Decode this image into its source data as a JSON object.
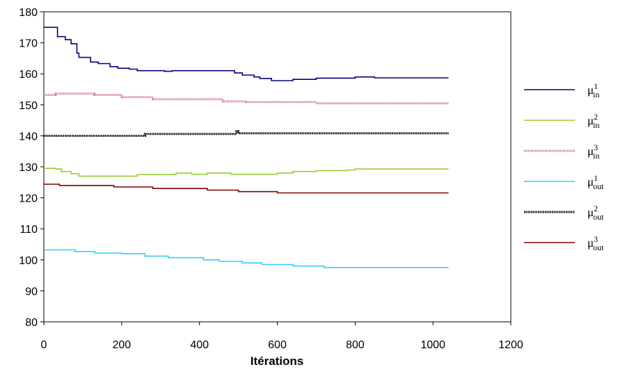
{
  "chart_data": {
    "type": "line",
    "title": "",
    "xlabel": "Itérations",
    "ylabel": "",
    "xlim": [
      0,
      1200
    ],
    "ylim": [
      80,
      180
    ],
    "xticks": [
      "0",
      "200",
      "400",
      "600",
      "800",
      "1000",
      "1200"
    ],
    "yticks": [
      "80",
      "90",
      "100",
      "110",
      "120",
      "130",
      "140",
      "150",
      "160",
      "170",
      "180"
    ],
    "grid": false,
    "legend_position": "right",
    "series": [
      {
        "name": "μ1in",
        "base": "μ",
        "sup": "1",
        "sub": "in",
        "color": "#000080",
        "style": "solid",
        "x": [
          0,
          30,
          35,
          50,
          55,
          70,
          78,
          85,
          90,
          110,
          120,
          140,
          170,
          190,
          220,
          240,
          310,
          330,
          460,
          490,
          510,
          540,
          555,
          585,
          600,
          640,
          700,
          730,
          800,
          850,
          1040
        ],
        "y": [
          175,
          175,
          172,
          172,
          171,
          169.7,
          169.7,
          166.7,
          165.3,
          165.3,
          163.8,
          163.3,
          162.3,
          161.8,
          161.5,
          161,
          160.8,
          161,
          161,
          160.3,
          159.6,
          159,
          158.5,
          157.8,
          157.8,
          158.2,
          158.6,
          158.6,
          159,
          158.7,
          158.7
        ]
      },
      {
        "name": "μ2in",
        "base": "μ",
        "sup": "2",
        "sub": "in",
        "color": "#99CC33",
        "style": "solid",
        "x": [
          0,
          20,
          30,
          45,
          70,
          90,
          110,
          150,
          200,
          240,
          320,
          340,
          380,
          420,
          480,
          560,
          600,
          640,
          700,
          780,
          800,
          860,
          1040
        ],
        "y": [
          129.5,
          129.5,
          129.3,
          128.5,
          127.8,
          127,
          127,
          127,
          127,
          127.5,
          127.5,
          128,
          127.6,
          128,
          127.6,
          127.6,
          128,
          128.5,
          128.8,
          129,
          129.3,
          129.3,
          129.3
        ]
      },
      {
        "name": "μ3in",
        "base": "μ",
        "sup": "3",
        "sub": "in",
        "color": "#CC6699",
        "style": "hatched",
        "x": [
          0,
          30,
          130,
          200,
          280,
          460,
          520,
          700,
          1040
        ],
        "y": [
          153.2,
          153.6,
          153.2,
          152.5,
          151.8,
          151.1,
          150.9,
          150.5,
          150.5
        ]
      },
      {
        "name": "μ1out",
        "base": "μ",
        "sup": "1",
        "sub": "out",
        "color": "#33CCFF",
        "style": "solid",
        "x": [
          0,
          30,
          80,
          130,
          200,
          260,
          320,
          410,
          450,
          510,
          560,
          640,
          720,
          1040
        ],
        "y": [
          103.2,
          103.2,
          102.7,
          102.2,
          102,
          101.2,
          100.7,
          100,
          99.5,
          99,
          98.5,
          98,
          97.5,
          97.5
        ]
      },
      {
        "name": "μ2out",
        "base": "μ",
        "sup": "2",
        "sub": "out",
        "color": "#000000",
        "style": "dotted",
        "x": [
          0,
          250,
          260,
          490,
          495,
          500,
          1040
        ],
        "y": [
          140,
          140,
          140.6,
          140.6,
          141.5,
          140.8,
          140.8
        ]
      },
      {
        "name": "μ3out",
        "base": "μ",
        "sup": "3",
        "sub": "out",
        "color": "#800000",
        "style": "solid",
        "x": [
          0,
          30,
          40,
          170,
          180,
          270,
          280,
          400,
          420,
          490,
          500,
          570,
          600,
          1040
        ],
        "y": [
          124.4,
          124.4,
          124,
          124,
          123.5,
          123.5,
          123,
          123,
          122.5,
          122.5,
          122,
          122,
          121.6,
          121.6
        ]
      }
    ]
  }
}
